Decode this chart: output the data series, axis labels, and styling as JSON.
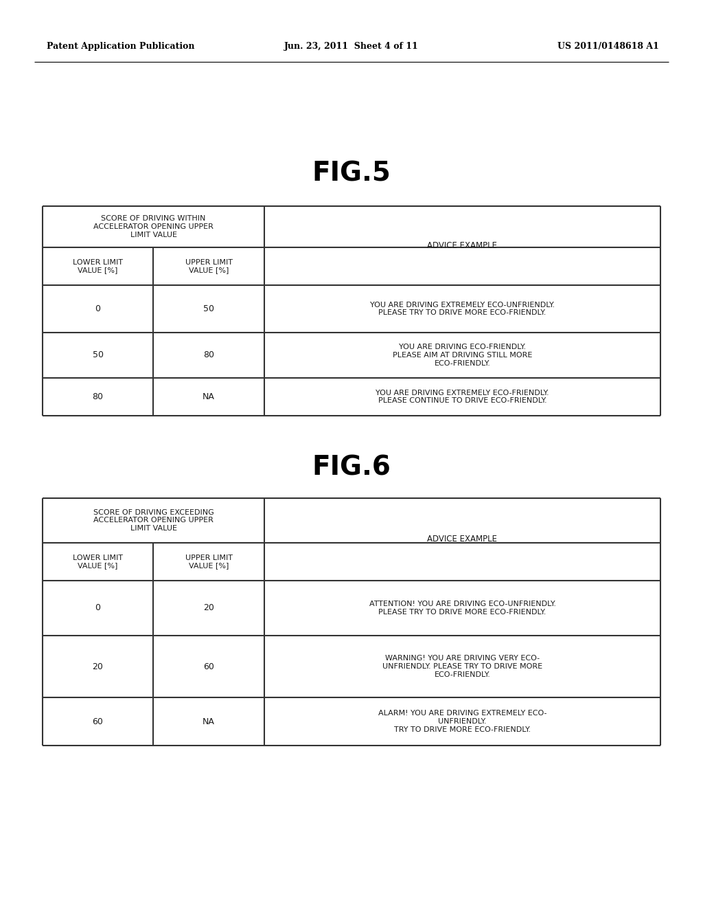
{
  "header_left": "Patent Application Publication",
  "header_mid": "Jun. 23, 2011  Sheet 4 of 11",
  "header_right": "US 2011/0148618 A1",
  "fig5_title": "FIG.5",
  "fig6_title": "FIG.6",
  "fig5_col1_header": "SCORE OF DRIVING WITHIN\nACCELERATOR OPENING UPPER\nLIMIT VALUE",
  "fig5_col1a_header": "LOWER LIMIT\nVALUE [%]",
  "fig5_col1b_header": "UPPER LIMIT\nVALUE [%]",
  "fig5_col2_header": "ADVICE EXAMPLE",
  "fig5_rows": [
    {
      "lower": "0",
      "upper": "50",
      "advice": "YOU ARE DRIVING EXTREMELY ECO-UNFRIENDLY.\nPLEASE TRY TO DRIVE MORE ECO-FRIENDLY."
    },
    {
      "lower": "50",
      "upper": "80",
      "advice": "YOU ARE DRIVING ECO-FRIENDLY.\nPLEASE AIM AT DRIVING STILL MORE\nECO-FRIENDLY."
    },
    {
      "lower": "80",
      "upper": "NA",
      "advice": "YOU ARE DRIVING EXTREMELY ECO-FRIENDLY.\nPLEASE CONTINUE TO DRIVE ECO-FRIENDLY."
    }
  ],
  "fig6_col1_header": "SCORE OF DRIVING EXCEEDING\nACCELERATOR OPENING UPPER\nLIMIT VALUE",
  "fig6_col1a_header": "LOWER LIMIT\nVALUE [%]",
  "fig6_col1b_header": "UPPER LIMIT\nVALUE [%]",
  "fig6_col2_header": "ADVICE EXAMPLE",
  "fig6_rows": [
    {
      "lower": "0",
      "upper": "20",
      "advice": "ATTENTION! YOU ARE DRIVING ECO-UNFRIENDLY.\nPLEASE TRY TO DRIVE MORE ECO-FRIENDLY."
    },
    {
      "lower": "20",
      "upper": "60",
      "advice": "WARNING! YOU ARE DRIVING VERY ECO-\nUNFRIENDLY. PLEASE TRY TO DRIVE MORE\nECO-FRIENDLY."
    },
    {
      "lower": "60",
      "upper": "NA",
      "advice": "ALARM! YOU ARE DRIVING EXTREMELY ECO-\nUNFRIENDLY.\nTRY TO DRIVE MORE ECO-FRIENDLY."
    }
  ],
  "bg_color": "#ffffff",
  "text_color": "#1a1a1a",
  "line_color": "#333333",
  "header_line_color": "#000000"
}
